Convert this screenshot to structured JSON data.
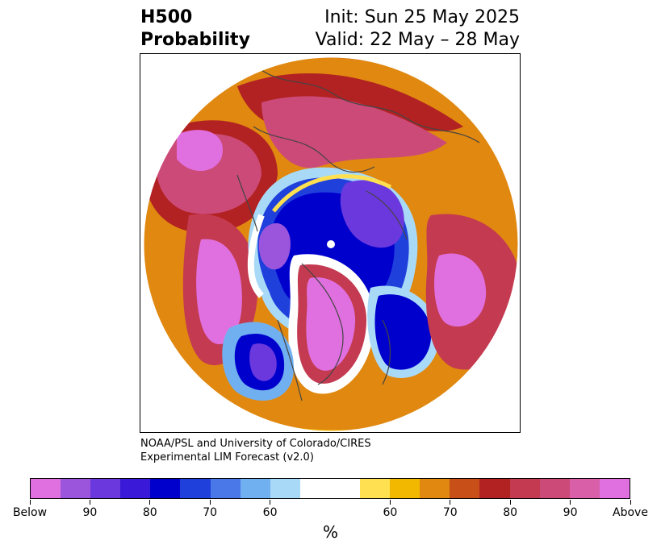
{
  "header": {
    "title_line1": "H500",
    "title_line2": "Probability",
    "init": "Init: Sun 25 May 2025",
    "valid": "Valid: 22 May – 28 May"
  },
  "credit": {
    "line1": "NOAA/PSL and University of Colorado/CIRES",
    "line2": "Experimental LIM Forecast (v2.0)"
  },
  "colorbar": {
    "unit": "%",
    "colors": [
      "#e070e0",
      "#9b55dd",
      "#6a38dd",
      "#3a1ad8",
      "#0000cc",
      "#2040dc",
      "#4a78e8",
      "#70b0f0",
      "#a8daf8",
      "#ffffff",
      "#ffffff",
      "#ffe050",
      "#f2b800",
      "#e08810",
      "#c85018",
      "#b22222",
      "#c43a50",
      "#cc4a78",
      "#d85fa8",
      "#e070e0"
    ],
    "tick_labels": [
      "Below",
      "90",
      "80",
      "70",
      "60",
      "60",
      "70",
      "80",
      "90",
      "Above"
    ]
  },
  "map": {
    "projection": "north-polar-stereographic",
    "palette": {
      "magenta": "#e070e0",
      "pink": "#cc4a78",
      "red": "#b22222",
      "darkorange": "#c85018",
      "orange": "#e08810",
      "gold": "#f2b800",
      "yellow": "#ffe050",
      "lightblue": "#a8daf8",
      "skyblue": "#70b0f0",
      "blue": "#2040dc",
      "navy": "#0000cc",
      "violet": "#6a38dd"
    }
  }
}
